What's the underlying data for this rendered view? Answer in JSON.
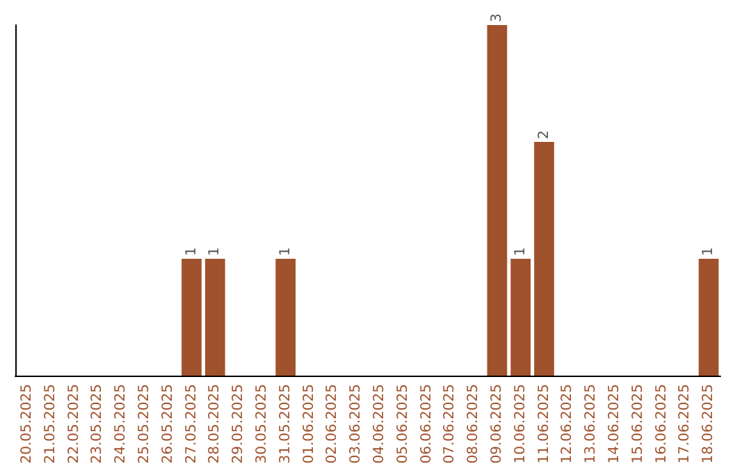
{
  "chart_data": {
    "type": "bar",
    "categories": [
      "20.05.2025",
      "21.05.2025",
      "22.05.2025",
      "23.05.2025",
      "24.05.2025",
      "25.05.2025",
      "26.05.2025",
      "27.05.2025",
      "28.05.2025",
      "29.05.2025",
      "30.05.2025",
      "31.05.2025",
      "01.06.2025",
      "02.06.2025",
      "03.06.2025",
      "04.06.2025",
      "05.06.2025",
      "06.06.2025",
      "07.06.2025",
      "08.06.2025",
      "09.06.2025",
      "10.06.2025",
      "11.06.2025",
      "12.06.2025",
      "13.06.2025",
      "14.06.2025",
      "15.06.2025",
      "16.06.2025",
      "17.06.2025",
      "18.06.2025"
    ],
    "values": [
      0,
      0,
      0,
      0,
      0,
      0,
      0,
      1,
      1,
      0,
      0,
      1,
      0,
      0,
      0,
      0,
      0,
      0,
      0,
      0,
      3,
      1,
      2,
      0,
      0,
      0,
      0,
      0,
      0,
      1
    ],
    "value_labels": [
      null,
      null,
      null,
      null,
      null,
      null,
      null,
      "1",
      "1",
      null,
      null,
      "1",
      null,
      null,
      null,
      null,
      null,
      null,
      null,
      null,
      "3",
      "1",
      "2",
      null,
      null,
      null,
      null,
      null,
      null,
      "1"
    ],
    "color": "#a0522d",
    "tick_labels": "x"
  }
}
